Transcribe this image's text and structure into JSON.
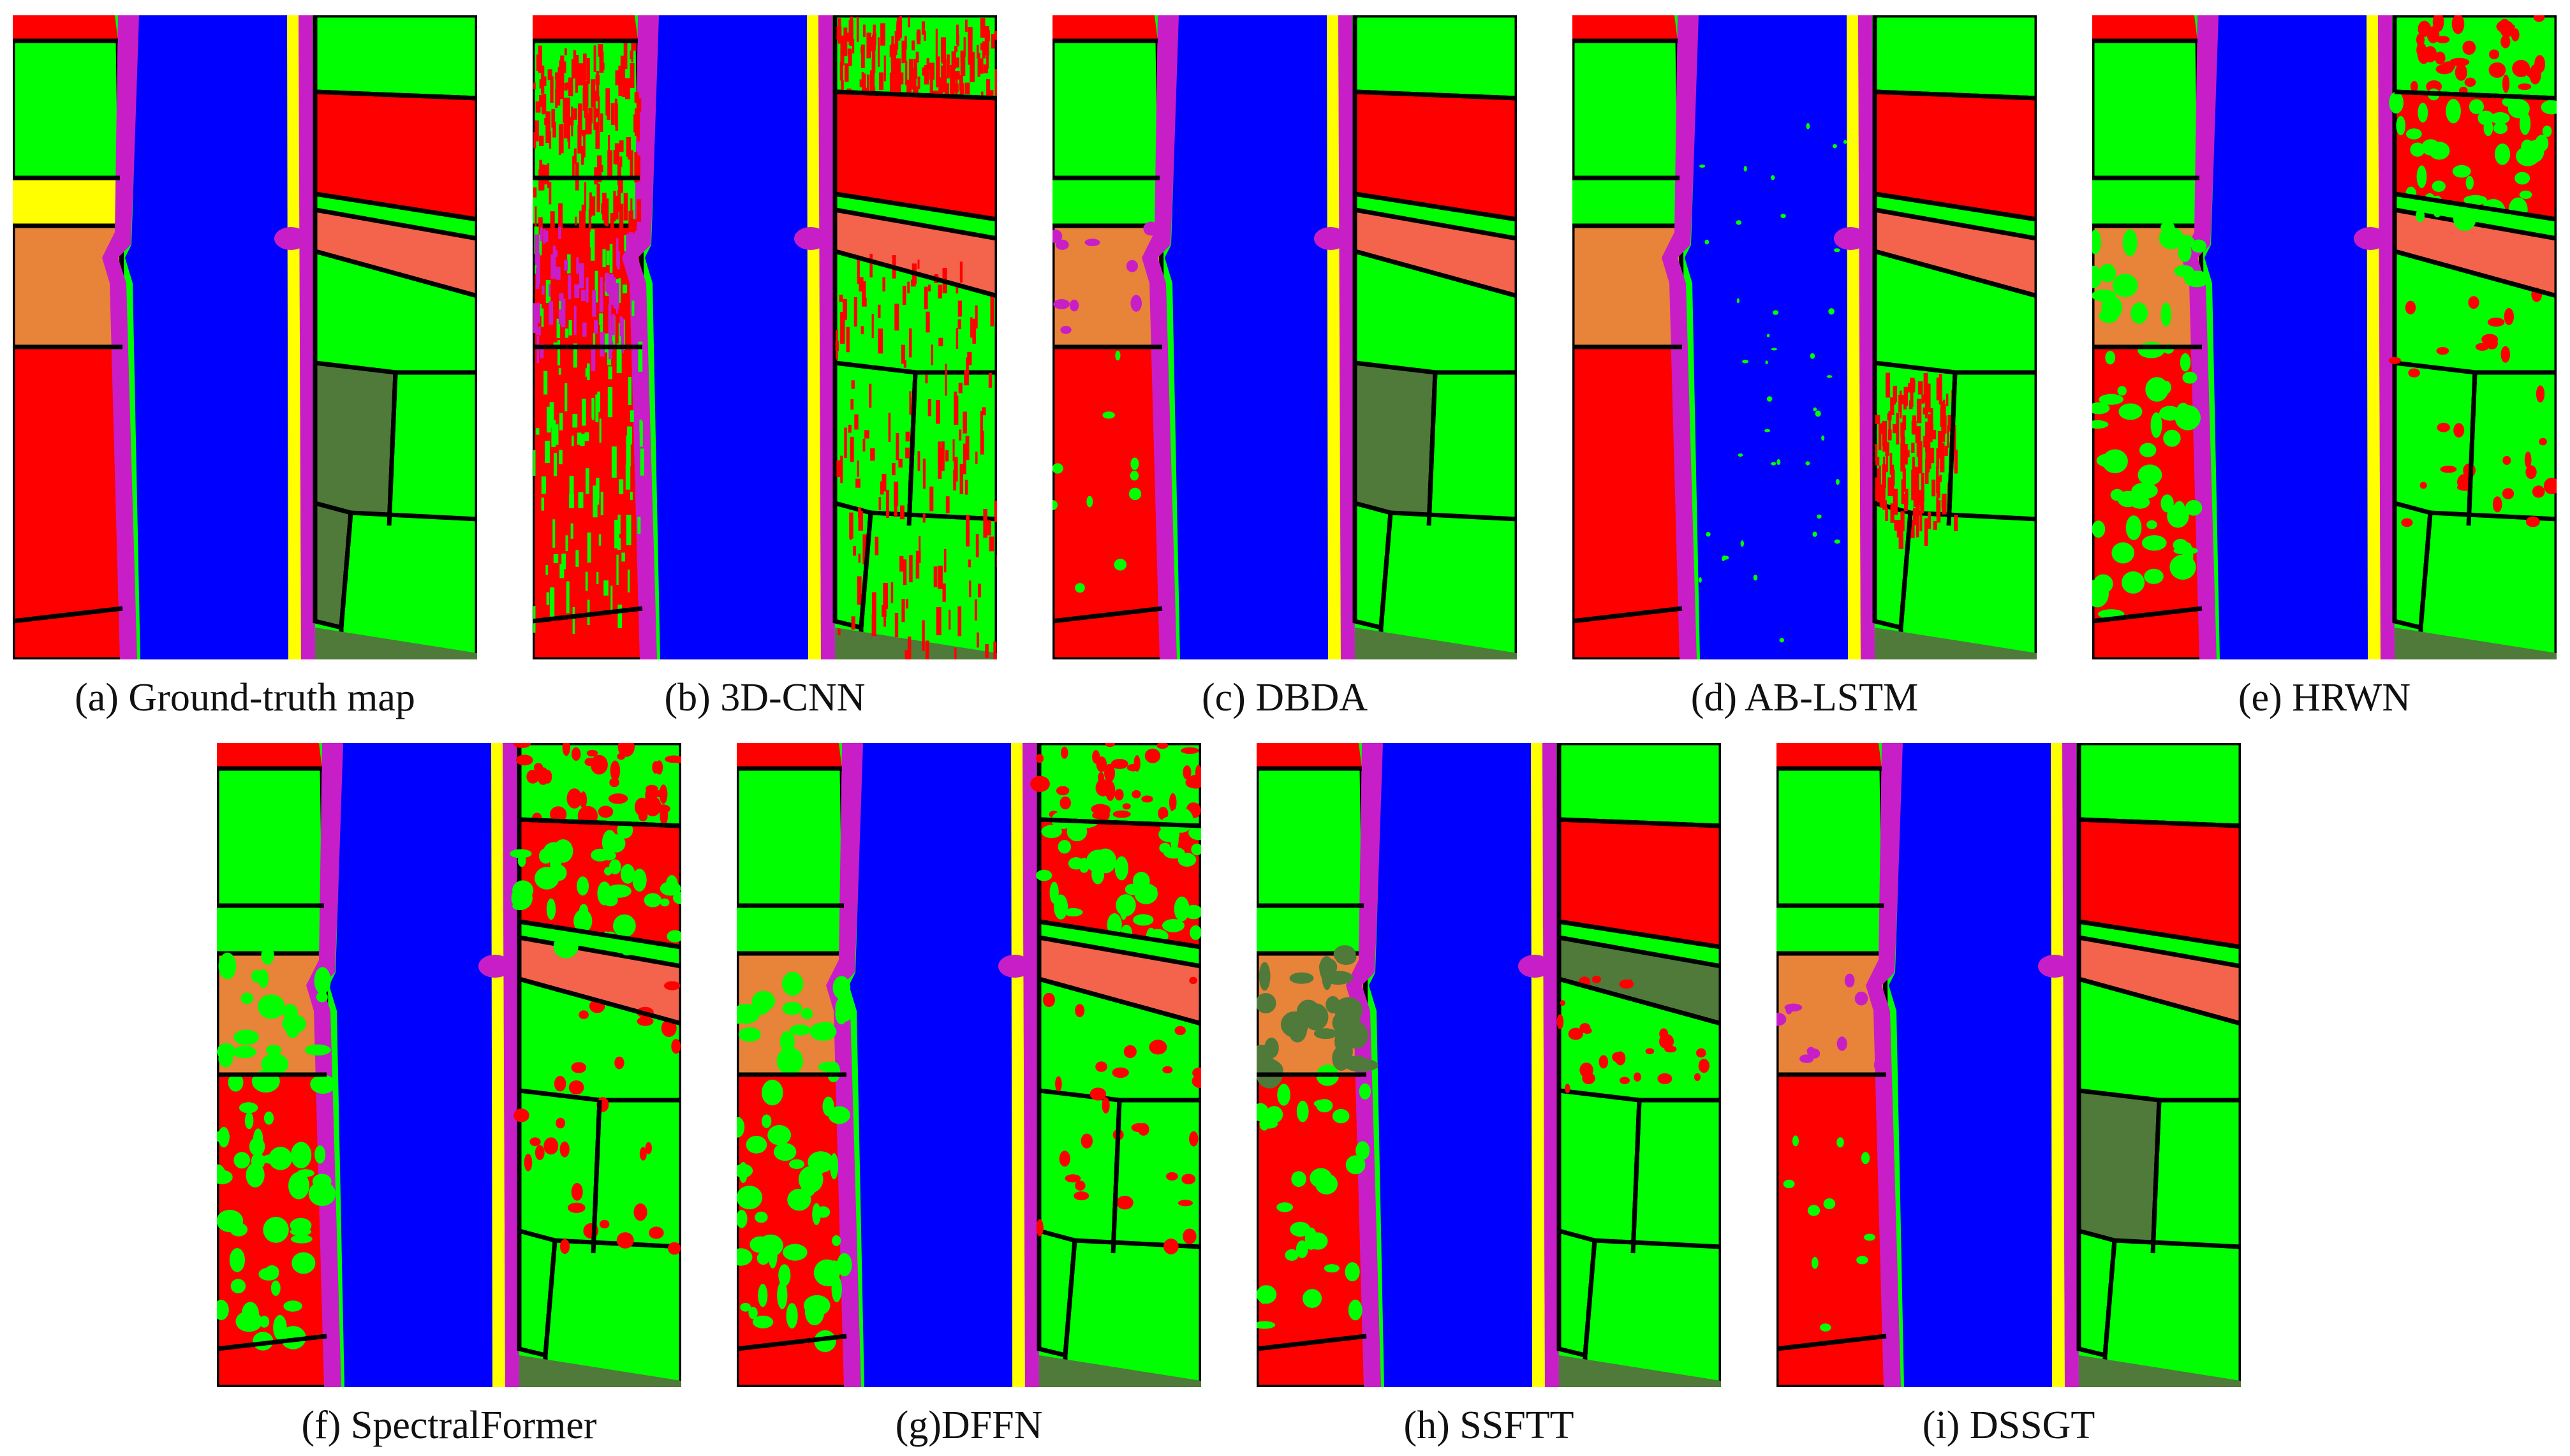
{
  "figure": {
    "panels": [
      {
        "caption": "(a) Ground-truth map",
        "variant": "truth"
      },
      {
        "caption": "(b) 3D-CNN",
        "variant": "noisy"
      },
      {
        "caption": "(c) DBDA",
        "variant": "clean"
      },
      {
        "caption": "(d) AB-LSTM",
        "variant": "lstm"
      },
      {
        "caption": "(e) HRWN",
        "variant": "blotchy"
      },
      {
        "caption": "(f) SpectralFormer",
        "variant": "blotchy"
      },
      {
        "caption": "(g)DFFN",
        "variant": "blotchy"
      },
      {
        "caption": "(h) SSFTT",
        "variant": "olive"
      },
      {
        "caption": "(i) DSSGT",
        "variant": "clean"
      }
    ]
  },
  "colors": {
    "water": "#0000ff",
    "field_green": "#00ff00",
    "field_red": "#ff0000",
    "field_orange": "#e8833a",
    "field_salmon": "#f4634c",
    "field_yellow": "#ffff00",
    "field_olive": "#4f7a3a",
    "road_magenta": "#c81ec8",
    "boundary": "#000000"
  }
}
